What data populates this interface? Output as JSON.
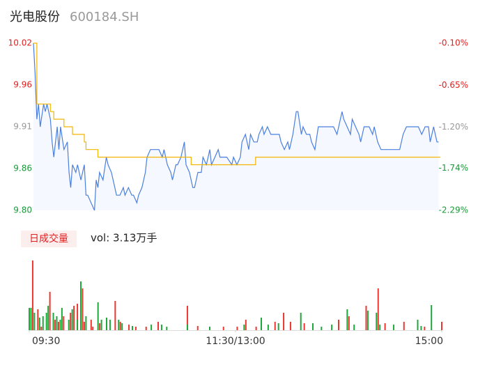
{
  "header": {
    "name": "光电股份",
    "code": "600184.SH"
  },
  "chart_data": [
    {
      "type": "line",
      "xlim": [
        0,
        240
      ],
      "ylim": [
        9.8,
        10.02
      ],
      "yticks": [
        {
          "value": 10.02,
          "label": "10.02"
        },
        {
          "value": 9.965,
          "label": "9.96"
        },
        {
          "value": 9.91,
          "label": "9.91"
        },
        {
          "value": 9.855,
          "label": "9.86"
        },
        {
          "value": 9.8,
          "label": "9.80"
        }
      ],
      "ytick_colors": [
        "#e02020",
        "#e02020",
        "#999999",
        "#1a9a3a",
        "#1a9a3a"
      ],
      "y2lim": [
        -2.29,
        -0.1
      ],
      "y2ticks": [
        {
          "value": -0.1,
          "label": "-0.10%"
        },
        {
          "value": -0.65,
          "label": "-0.65%"
        },
        {
          "value": -1.2,
          "label": "-1.20%"
        },
        {
          "value": -1.74,
          "label": "-1.74%"
        },
        {
          "value": -2.29,
          "label": "-2.29%"
        }
      ],
      "series": [
        {
          "color": "#4a7fe0",
          "area": true,
          "x": [
            0,
            1,
            2,
            3,
            4,
            6,
            7,
            8,
            10,
            11,
            12,
            14,
            15,
            16,
            18,
            20,
            21,
            22,
            23,
            25,
            26,
            28,
            30,
            31,
            32,
            34,
            36,
            37,
            38,
            39,
            41,
            43,
            44,
            46,
            48,
            49,
            51,
            53,
            54,
            56,
            58,
            59,
            61,
            62,
            64,
            66,
            67,
            69,
            72,
            74,
            76,
            77,
            79,
            81,
            82,
            84,
            85,
            87,
            89,
            90,
            92,
            94,
            95,
            97,
            99,
            100,
            102,
            104,
            105,
            107,
            109,
            110,
            112,
            114,
            117,
            118,
            120,
            122,
            123,
            125,
            127,
            128,
            130,
            132,
            133,
            135,
            136,
            138,
            140,
            141,
            145,
            146,
            148,
            150,
            151,
            153,
            155,
            156,
            158,
            159,
            161,
            163,
            164,
            166,
            168,
            169,
            172,
            174,
            177,
            179,
            182,
            183,
            185,
            187,
            188,
            190,
            192,
            193,
            195,
            196,
            198,
            200,
            201,
            203,
            205,
            207,
            210,
            214,
            216,
            218,
            220,
            223,
            224,
            227,
            229,
            231,
            233,
            234,
            236,
            238,
            239
          ],
          "values": [
            10.02,
            9.98,
            9.92,
            9.94,
            9.91,
            9.94,
            9.93,
            9.94,
            9.92,
            9.89,
            9.87,
            9.91,
            9.88,
            9.91,
            9.88,
            9.89,
            9.85,
            9.83,
            9.86,
            9.85,
            9.86,
            9.84,
            9.86,
            9.82,
            9.82,
            9.81,
            9.8,
            9.84,
            9.83,
            9.85,
            9.84,
            9.87,
            9.86,
            9.85,
            9.83,
            9.82,
            9.82,
            9.83,
            9.82,
            9.83,
            9.82,
            9.82,
            9.81,
            9.82,
            9.83,
            9.85,
            9.87,
            9.88,
            9.88,
            9.88,
            9.87,
            9.88,
            9.86,
            9.85,
            9.84,
            9.86,
            9.86,
            9.87,
            9.89,
            9.86,
            9.85,
            9.83,
            9.83,
            9.85,
            9.85,
            9.87,
            9.86,
            9.88,
            9.86,
            9.87,
            9.88,
            9.87,
            9.87,
            9.87,
            9.86,
            9.87,
            9.86,
            9.87,
            9.89,
            9.9,
            9.88,
            9.9,
            9.89,
            9.89,
            9.9,
            9.91,
            9.9,
            9.91,
            9.9,
            9.9,
            9.9,
            9.89,
            9.88,
            9.89,
            9.88,
            9.9,
            9.93,
            9.93,
            9.9,
            9.91,
            9.9,
            9.9,
            9.89,
            9.88,
            9.91,
            9.91,
            9.91,
            9.91,
            9.91,
            9.9,
            9.93,
            9.92,
            9.91,
            9.9,
            9.92,
            9.91,
            9.9,
            9.89,
            9.91,
            9.91,
            9.91,
            9.9,
            9.91,
            9.89,
            9.88,
            9.88,
            9.88,
            9.88,
            9.88,
            9.9,
            9.91,
            9.91,
            9.91,
            9.91,
            9.9,
            9.91,
            9.91,
            9.89,
            9.91,
            9.89,
            9.89
          ]
        },
        {
          "color": "#f5b400",
          "step": true,
          "x": [
            0,
            2,
            10,
            12,
            18,
            23,
            30,
            31,
            38,
            93,
            131,
            240
          ],
          "values": [
            10.02,
            9.94,
            9.93,
            9.92,
            9.91,
            9.9,
            9.89,
            9.88,
            9.87,
            9.86,
            9.87,
            9.87
          ]
        }
      ]
    },
    {
      "type": "bar",
      "title": "日成交量",
      "subtitle": "vol: 3.13万手",
      "xlim": [
        0,
        240
      ],
      "xticks": [
        {
          "value": 0,
          "label": "09:30"
        },
        {
          "value": 120,
          "label": "11:30/13:00"
        },
        {
          "value": 240,
          "label": "15:00"
        }
      ],
      "series": [
        {
          "color": "#e8382f",
          "x": [
            2,
            5,
            7,
            12,
            15,
            17,
            20,
            24,
            26,
            28,
            31,
            32,
            36,
            37,
            41,
            50,
            53,
            58,
            62,
            68,
            75,
            92,
            98,
            113,
            121,
            126,
            132,
            143,
            148,
            152,
            160,
            180,
            186,
            196,
            203,
            207,
            218,
            230,
            240
          ],
          "values": [
            1000,
            300,
            50,
            550,
            150,
            120,
            200,
            250,
            350,
            380,
            600,
            120,
            150,
            50,
            100,
            420,
            120,
            80,
            50,
            50,
            120,
            350,
            60,
            50,
            50,
            150,
            50,
            120,
            250,
            120,
            100,
            150,
            200,
            350,
            600,
            100,
            120,
            50,
            120
          ]
        },
        {
          "color": "#1fa83a",
          "x": [
            0,
            1,
            3,
            6,
            8,
            10,
            11,
            14,
            16,
            18,
            19,
            23,
            25,
            28,
            30,
            33,
            40,
            42,
            45,
            47,
            52,
            54,
            60,
            71,
            77,
            80,
            92,
            105,
            125,
            135,
            139,
            145,
            158,
            165,
            170,
            176,
            185,
            189,
            197,
            202,
            204,
            212,
            226,
            228,
            234
          ],
          "values": [
            320,
            320,
            250,
            180,
            200,
            250,
            350,
            250,
            200,
            150,
            320,
            150,
            300,
            150,
            700,
            200,
            400,
            150,
            180,
            150,
            150,
            100,
            60,
            80,
            80,
            50,
            80,
            50,
            80,
            180,
            80,
            100,
            250,
            100,
            50,
            80,
            300,
            80,
            280,
            250,
            80,
            80,
            150,
            60,
            360
          ]
        }
      ]
    }
  ]
}
